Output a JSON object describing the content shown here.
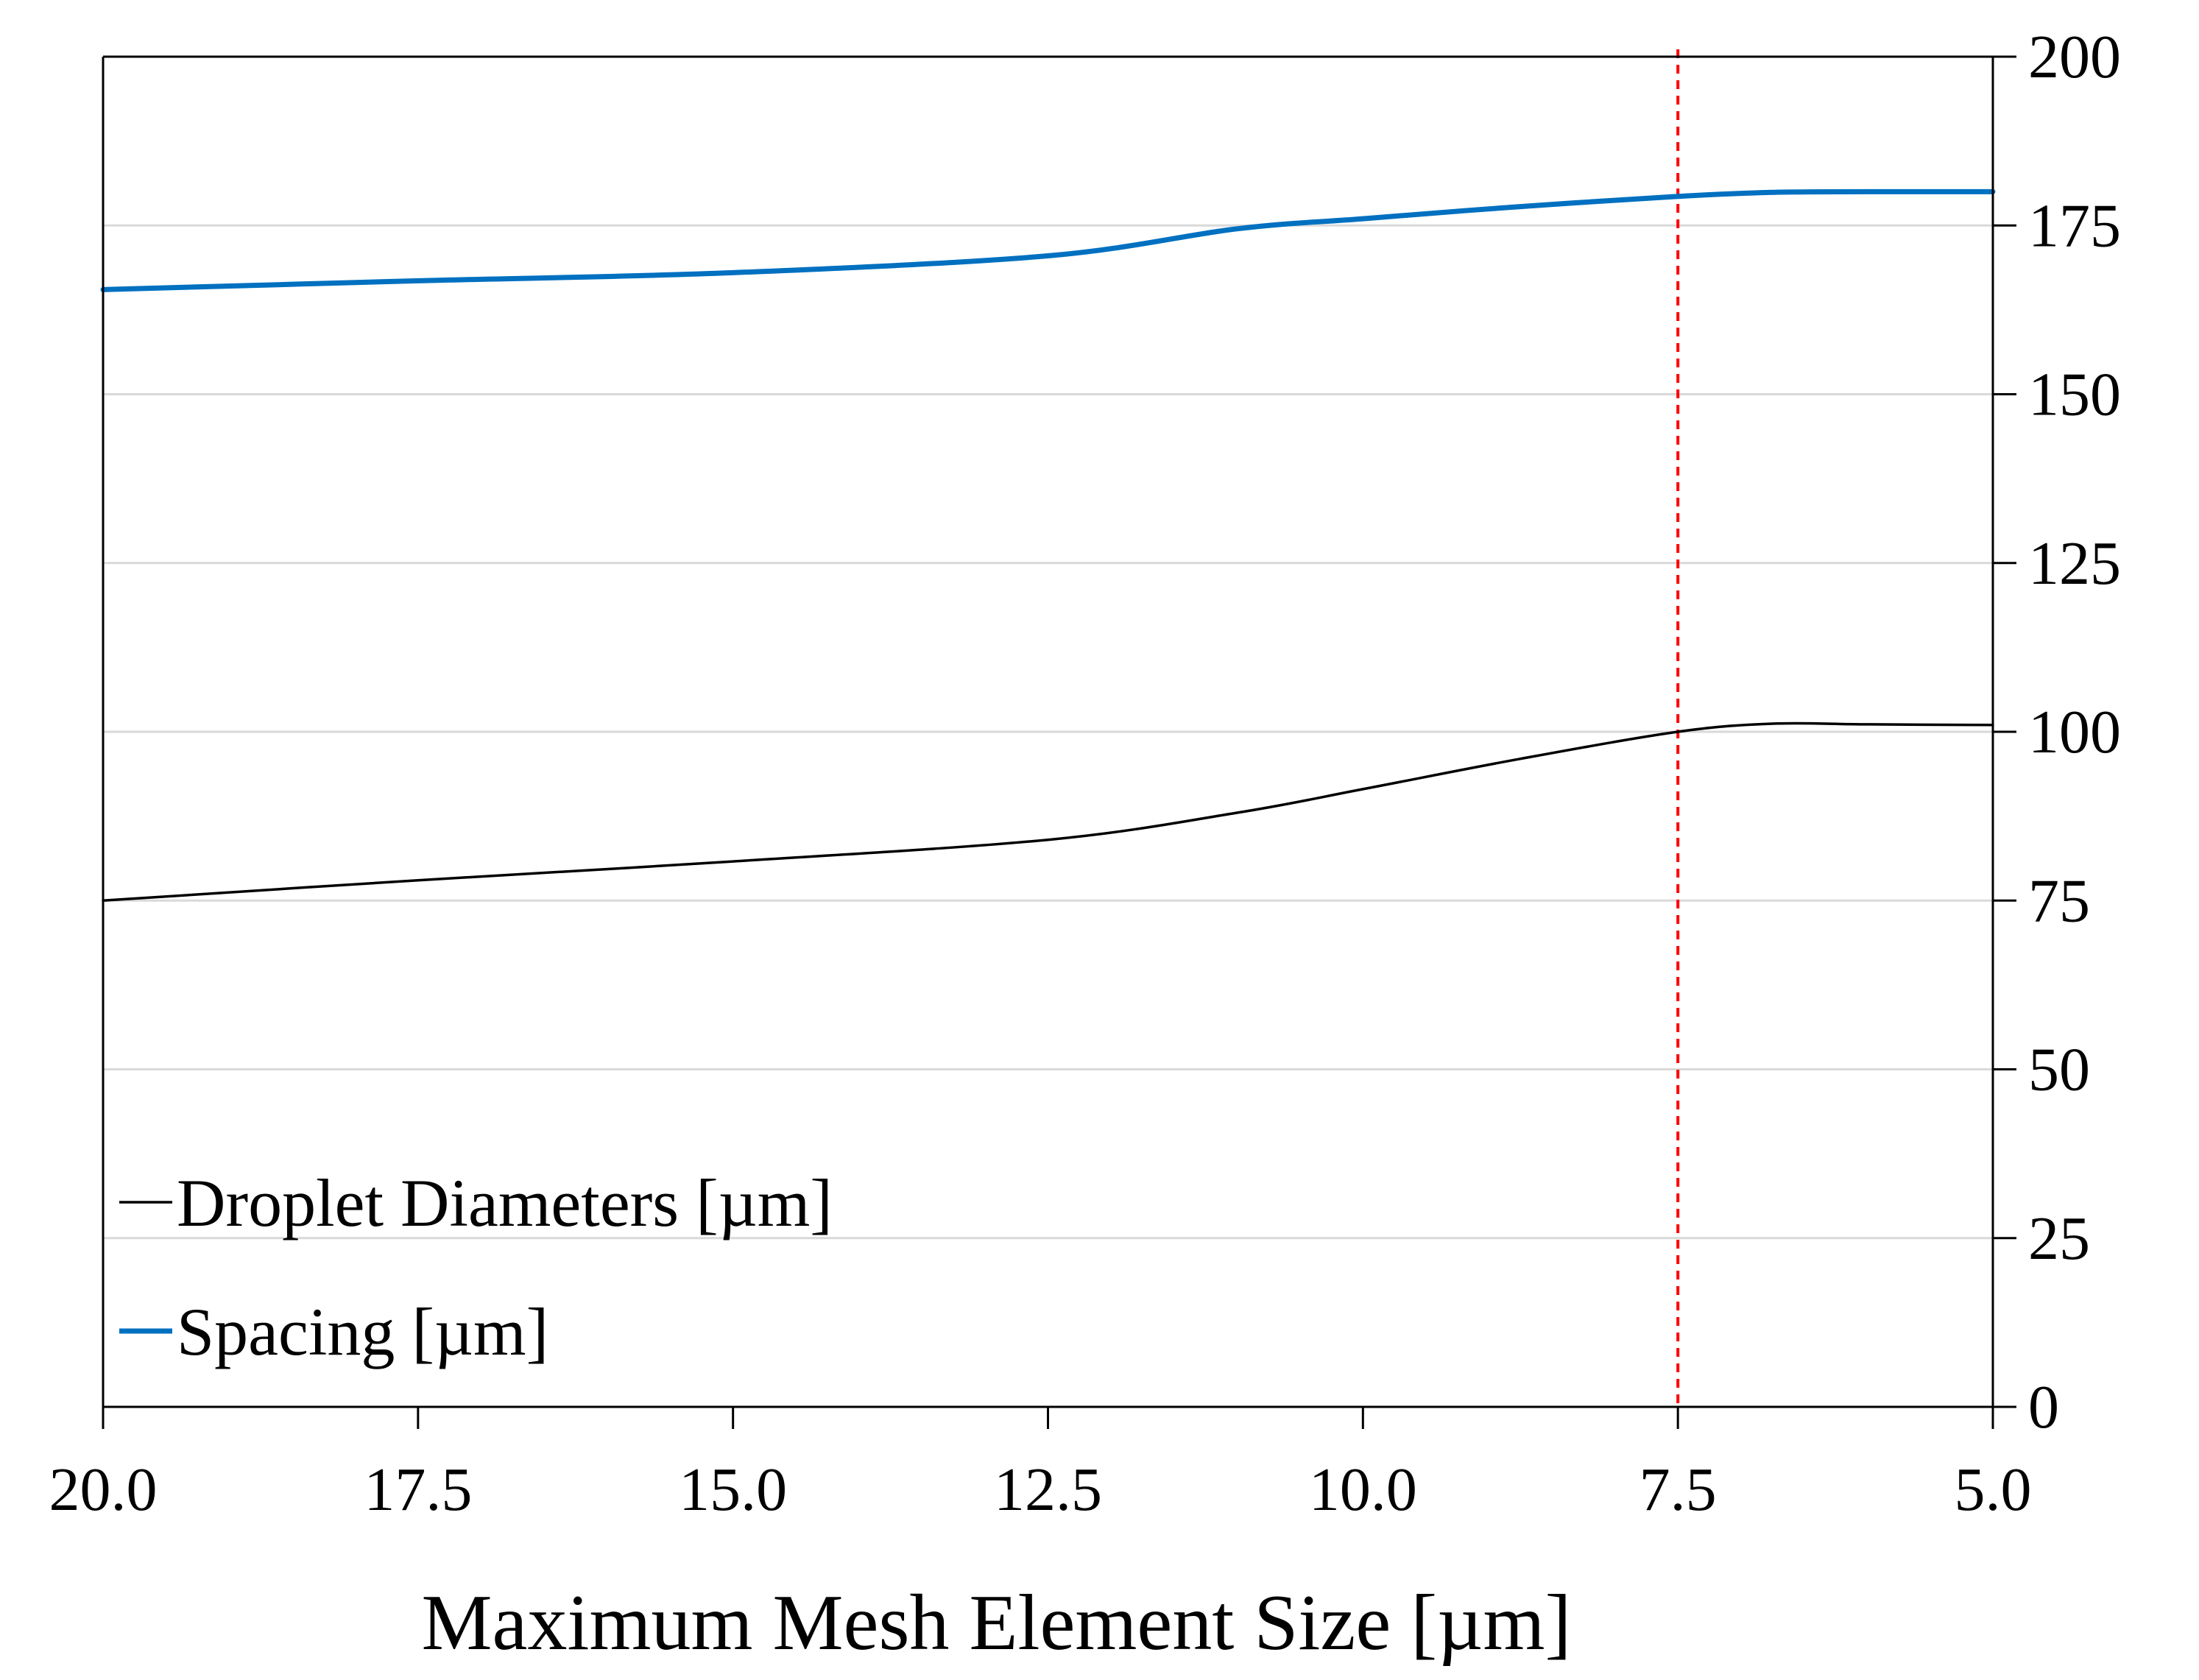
{
  "chart_data": {
    "type": "line",
    "title": "",
    "xlabel": "Maximum Mesh Element Size [µm]",
    "ylabel": "",
    "x_reversed": true,
    "xlim": [
      20.0,
      5.0
    ],
    "ylim": [
      0,
      200
    ],
    "x_ticks": [
      "20.0",
      "17.5",
      "15.0",
      "12.5",
      "10.0",
      "7.5",
      "5.0"
    ],
    "x_tick_values": [
      20.0,
      17.5,
      15.0,
      12.5,
      10.0,
      7.5,
      5.0
    ],
    "y_ticks": [
      "0",
      "25",
      "50",
      "75",
      "100",
      "125",
      "150",
      "175",
      "200"
    ],
    "y_tick_values": [
      0,
      25,
      50,
      75,
      100,
      125,
      150,
      175,
      200
    ],
    "y_axis_side": "right",
    "grid": true,
    "legend_position": "bottom-left",
    "reference_line": {
      "x": 7.5,
      "color": "#ff0000",
      "style": "dashed"
    },
    "series": [
      {
        "name": "Droplet Diameters [µm]",
        "color": "#000000",
        "x": [
          20.0,
          17.5,
          15.0,
          12.5,
          11.0,
          10.0,
          8.75,
          7.5,
          6.75,
          6.0,
          5.0
        ],
        "y": [
          75.0,
          78.0,
          80.8,
          84.0,
          88.0,
          91.5,
          96.0,
          100.0,
          101.2,
          101.1,
          101.0
        ]
      },
      {
        "name": "Spacing [µm]",
        "color": "#0070c0",
        "x": [
          20.0,
          17.5,
          15.0,
          12.5,
          11.0,
          10.0,
          8.75,
          7.5,
          6.75,
          6.0,
          5.0
        ],
        "y": [
          165.5,
          166.8,
          168.0,
          170.5,
          174.5,
          176.0,
          177.8,
          179.3,
          179.9,
          180.0,
          180.0
        ]
      }
    ]
  }
}
